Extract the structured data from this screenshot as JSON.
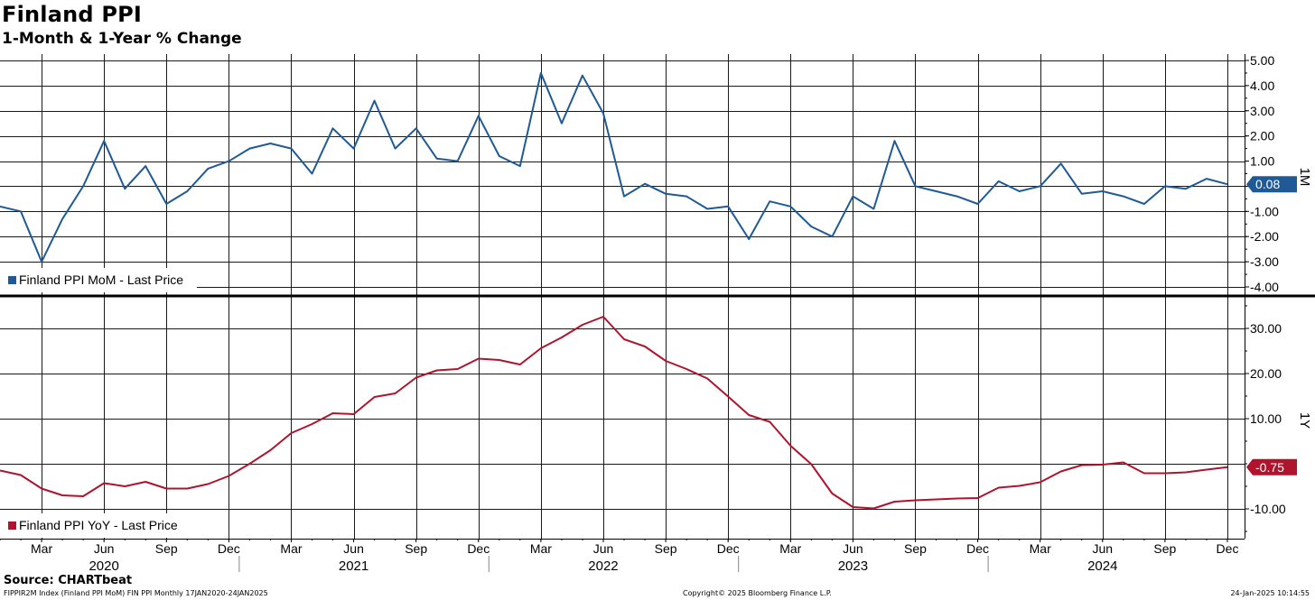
{
  "header": {
    "title": "Finland PPI",
    "subtitle": "1-Month & 1-Year % Change"
  },
  "footer": {
    "source": "Source: CHARTbeat",
    "left_note": "FIPPIR2M Index (Finland PPI MoM) FIN PPI  Monthly 17JAN2020-24JAN2025",
    "center_note": "Copyright© 2025 Bloomberg Finance L.P.",
    "right_note": "24-Jan-2025 10:14:55"
  },
  "chart_data": [
    {
      "type": "line",
      "panel": "top",
      "axis_side_label": "1M",
      "legend": "Finland PPI MoM - Last Price",
      "legend_position": "bottom-left",
      "color": "#1f5a96",
      "last_value_label": "0.08",
      "ylim": [
        -4.2,
        5.2
      ],
      "yticks": [
        "5.00",
        "4.00",
        "3.00",
        "2.00",
        "1.00",
        "0.00",
        "-1.00",
        "-2.00",
        "-3.00",
        "-4.00"
      ],
      "ytick_values": [
        5,
        4,
        3,
        2,
        1,
        0,
        -1,
        -2,
        -3,
        -4
      ],
      "grid": true,
      "x": [
        "2020-01",
        "2020-02",
        "2020-03",
        "2020-04",
        "2020-05",
        "2020-06",
        "2020-07",
        "2020-08",
        "2020-09",
        "2020-10",
        "2020-11",
        "2020-12",
        "2021-01",
        "2021-02",
        "2021-03",
        "2021-04",
        "2021-05",
        "2021-06",
        "2021-07",
        "2021-08",
        "2021-09",
        "2021-10",
        "2021-11",
        "2021-12",
        "2022-01",
        "2022-02",
        "2022-03",
        "2022-04",
        "2022-05",
        "2022-06",
        "2022-07",
        "2022-08",
        "2022-09",
        "2022-10",
        "2022-11",
        "2022-12",
        "2023-01",
        "2023-02",
        "2023-03",
        "2023-04",
        "2023-05",
        "2023-06",
        "2023-07",
        "2023-08",
        "2023-09",
        "2023-10",
        "2023-11",
        "2023-12",
        "2024-01",
        "2024-02",
        "2024-03",
        "2024-04",
        "2024-05",
        "2024-06",
        "2024-07",
        "2024-08",
        "2024-09",
        "2024-10",
        "2024-11",
        "2024-12"
      ],
      "values": [
        -0.8,
        -1.0,
        -3.0,
        -1.3,
        0.0,
        1.8,
        -0.1,
        0.8,
        -0.7,
        -0.2,
        0.7,
        1.0,
        1.5,
        1.7,
        1.5,
        0.5,
        2.3,
        1.5,
        3.4,
        1.5,
        2.3,
        1.1,
        1.0,
        2.8,
        1.2,
        0.8,
        4.5,
        2.5,
        4.4,
        2.9,
        -0.4,
        0.1,
        -0.3,
        -0.4,
        -0.9,
        -0.8,
        -2.1,
        -0.6,
        -0.8,
        -1.6,
        -2.0,
        -0.4,
        -0.9,
        1.8,
        0.0,
        -0.2,
        -0.4,
        -0.7,
        0.2,
        -0.2,
        0.0,
        0.9,
        -0.3,
        -0.2,
        -0.4,
        -0.7,
        0.0,
        -0.1,
        0.3,
        0.08
      ]
    },
    {
      "type": "line",
      "panel": "bottom",
      "axis_side_label": "1Y",
      "legend": "Finland PPI YoY - Last Price",
      "legend_position": "bottom-left",
      "color": "#b0142c",
      "last_value_label": "-0.75",
      "ylim": [
        -17.5,
        36
      ],
      "yticks": [
        "30.00",
        "20.00",
        "10.00",
        "-10.00"
      ],
      "ytick_values": [
        30,
        20,
        10,
        -10
      ],
      "grid_values": [
        30,
        20,
        10,
        0,
        -10
      ],
      "grid": true,
      "x": [
        "2020-01",
        "2020-02",
        "2020-03",
        "2020-04",
        "2020-05",
        "2020-06",
        "2020-07",
        "2020-08",
        "2020-09",
        "2020-10",
        "2020-11",
        "2020-12",
        "2021-01",
        "2021-02",
        "2021-03",
        "2021-04",
        "2021-05",
        "2021-06",
        "2021-07",
        "2021-08",
        "2021-09",
        "2021-10",
        "2021-11",
        "2021-12",
        "2022-01",
        "2022-02",
        "2022-03",
        "2022-04",
        "2022-05",
        "2022-06",
        "2022-07",
        "2022-08",
        "2022-09",
        "2022-10",
        "2022-11",
        "2022-12",
        "2023-01",
        "2023-02",
        "2023-03",
        "2023-04",
        "2023-05",
        "2023-06",
        "2023-07",
        "2023-08",
        "2023-09",
        "2023-10",
        "2023-11",
        "2023-12",
        "2024-01",
        "2024-02",
        "2024-03",
        "2024-04",
        "2024-05",
        "2024-06",
        "2024-07",
        "2024-08",
        "2024-09",
        "2024-10",
        "2024-11",
        "2024-12"
      ],
      "values": [
        -1.5,
        -2.5,
        -5.5,
        -7.0,
        -7.2,
        -4.3,
        -5.0,
        -4.0,
        -5.5,
        -5.5,
        -4.5,
        -2.7,
        0.0,
        3.0,
        6.8,
        8.8,
        11.2,
        11.0,
        14.8,
        15.6,
        19.1,
        20.7,
        21.0,
        23.3,
        23.0,
        22.0,
        25.6,
        28.0,
        30.8,
        32.6,
        27.6,
        26.0,
        22.8,
        21.0,
        18.9,
        14.9,
        10.8,
        9.3,
        4.0,
        -0.1,
        -6.6,
        -9.6,
        -9.9,
        -8.4,
        -8.1,
        -7.9,
        -7.7,
        -7.6,
        -5.3,
        -4.9,
        -4.1,
        -1.7,
        -0.3,
        -0.2,
        0.3,
        -2.1,
        -2.1,
        -1.9,
        -1.3,
        -0.75
      ]
    }
  ],
  "x_axis": {
    "month_labels": [
      "Mar",
      "Jun",
      "Sep",
      "Dec",
      "Mar",
      "Jun",
      "Sep",
      "Dec",
      "Mar",
      "Jun",
      "Sep",
      "Dec",
      "Mar",
      "Jun",
      "Sep",
      "Dec",
      "Mar",
      "Jun",
      "Sep",
      "Dec"
    ],
    "month_label_index": [
      2,
      5,
      8,
      11,
      14,
      17,
      20,
      23,
      26,
      29,
      32,
      35,
      38,
      41,
      44,
      47,
      50,
      53,
      56,
      59
    ],
    "year_labels": [
      "2020",
      "2021",
      "2022",
      "2023",
      "2024"
    ],
    "year_label_index": [
      5,
      17,
      29,
      41,
      53
    ],
    "year_separator_index": [
      12,
      24,
      36,
      48
    ]
  }
}
